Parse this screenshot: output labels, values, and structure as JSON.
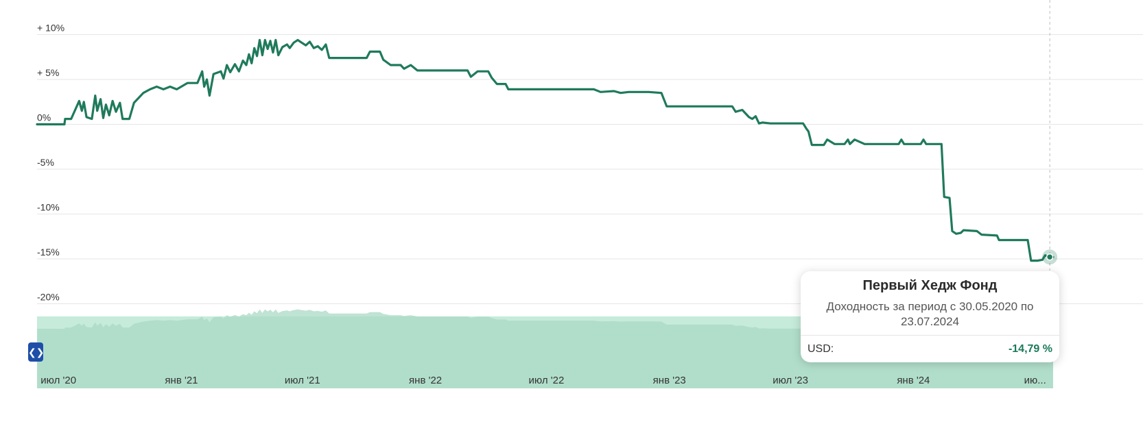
{
  "chart_data": {
    "type": "line",
    "ylim": [
      -22,
      12
    ],
    "y_ticks": [
      {
        "value": 10,
        "label": "+ 10%"
      },
      {
        "value": 5,
        "label": "+ 5%"
      },
      {
        "value": 0,
        "label": "0%"
      },
      {
        "value": -5,
        "label": "-5%"
      },
      {
        "value": -10,
        "label": "-10%"
      },
      {
        "value": -15,
        "label": "-15%"
      },
      {
        "value": -20,
        "label": "-20%"
      }
    ],
    "x_range": [
      "2020-05-30",
      "2024-07-28"
    ],
    "x_ticks": [
      {
        "date": "2020-07-01",
        "label": "июл '20"
      },
      {
        "date": "2021-01-01",
        "label": "янв '21"
      },
      {
        "date": "2021-07-01",
        "label": "июл '21"
      },
      {
        "date": "2022-01-01",
        "label": "янв '22"
      },
      {
        "date": "2022-07-01",
        "label": "июл '22"
      },
      {
        "date": "2023-01-01",
        "label": "янв '23"
      },
      {
        "date": "2023-07-01",
        "label": "июл '23"
      },
      {
        "date": "2024-01-01",
        "label": "янв '24"
      },
      {
        "date": "2024-07-01",
        "label": "ию..."
      }
    ],
    "grid": true,
    "line_color": "#1f7a5c",
    "navigator_color": "#c6ebdb",
    "series": [
      {
        "points": [
          [
            "2020-05-30",
            0.0
          ],
          [
            "2020-06-25",
            0.0
          ],
          [
            "2020-07-10",
            0.0
          ],
          [
            "2020-07-11",
            0.6
          ],
          [
            "2020-07-20",
            0.6
          ],
          [
            "2020-08-01",
            2.6
          ],
          [
            "2020-08-05",
            1.5
          ],
          [
            "2020-08-08",
            2.5
          ],
          [
            "2020-08-12",
            0.8
          ],
          [
            "2020-08-20",
            0.6
          ],
          [
            "2020-08-25",
            3.2
          ],
          [
            "2020-08-28",
            1.5
          ],
          [
            "2020-09-02",
            2.8
          ],
          [
            "2020-09-06",
            0.7
          ],
          [
            "2020-09-10",
            2.2
          ],
          [
            "2020-09-15",
            1.0
          ],
          [
            "2020-09-20",
            2.6
          ],
          [
            "2020-09-25",
            1.4
          ],
          [
            "2020-10-01",
            2.4
          ],
          [
            "2020-10-05",
            0.6
          ],
          [
            "2020-10-15",
            0.6
          ],
          [
            "2020-10-22",
            2.4
          ],
          [
            "2020-11-05",
            3.5
          ],
          [
            "2020-11-15",
            3.9
          ],
          [
            "2020-11-25",
            4.2
          ],
          [
            "2020-12-05",
            3.9
          ],
          [
            "2020-12-15",
            4.2
          ],
          [
            "2020-12-25",
            3.9
          ],
          [
            "2021-01-10",
            4.6
          ],
          [
            "2021-01-25",
            4.6
          ],
          [
            "2021-02-01",
            5.9
          ],
          [
            "2021-02-04",
            4.2
          ],
          [
            "2021-02-08",
            5.0
          ],
          [
            "2021-02-12",
            3.2
          ],
          [
            "2021-02-18",
            5.6
          ],
          [
            "2021-03-01",
            5.9
          ],
          [
            "2021-03-05",
            5.1
          ],
          [
            "2021-03-10",
            6.6
          ],
          [
            "2021-03-15",
            5.8
          ],
          [
            "2021-03-22",
            6.7
          ],
          [
            "2021-03-28",
            5.9
          ],
          [
            "2021-04-03",
            7.1
          ],
          [
            "2021-04-08",
            6.6
          ],
          [
            "2021-04-12",
            7.8
          ],
          [
            "2021-04-16",
            6.8
          ],
          [
            "2021-04-20",
            8.5
          ],
          [
            "2021-04-24",
            7.6
          ],
          [
            "2021-04-28",
            9.4
          ],
          [
            "2021-05-02",
            7.7
          ],
          [
            "2021-05-06",
            9.4
          ],
          [
            "2021-05-10",
            8.4
          ],
          [
            "2021-05-14",
            9.3
          ],
          [
            "2021-05-18",
            8.0
          ],
          [
            "2021-05-22",
            9.4
          ],
          [
            "2021-05-26",
            7.7
          ],
          [
            "2021-06-01",
            8.6
          ],
          [
            "2021-06-08",
            8.9
          ],
          [
            "2021-06-12",
            8.5
          ],
          [
            "2021-06-18",
            9.1
          ],
          [
            "2021-06-24",
            9.4
          ],
          [
            "2021-06-30",
            9.1
          ],
          [
            "2021-07-06",
            8.8
          ],
          [
            "2021-07-12",
            9.2
          ],
          [
            "2021-07-18",
            8.5
          ],
          [
            "2021-07-24",
            8.7
          ],
          [
            "2021-07-30",
            8.3
          ],
          [
            "2021-08-05",
            8.9
          ],
          [
            "2021-08-10",
            7.4
          ],
          [
            "2021-09-15",
            7.4
          ],
          [
            "2021-10-05",
            7.4
          ],
          [
            "2021-10-10",
            8.1
          ],
          [
            "2021-10-25",
            8.1
          ],
          [
            "2021-10-30",
            7.2
          ],
          [
            "2021-11-10",
            6.6
          ],
          [
            "2021-11-25",
            6.6
          ],
          [
            "2021-11-30",
            6.2
          ],
          [
            "2021-12-10",
            6.6
          ],
          [
            "2021-12-20",
            6.0
          ],
          [
            "2022-02-01",
            6.0
          ],
          [
            "2022-03-05",
            6.0
          ],
          [
            "2022-03-10",
            5.3
          ],
          [
            "2022-03-20",
            5.9
          ],
          [
            "2022-04-05",
            5.9
          ],
          [
            "2022-04-10",
            5.2
          ],
          [
            "2022-04-18",
            4.5
          ],
          [
            "2022-05-01",
            4.5
          ],
          [
            "2022-05-05",
            3.9
          ],
          [
            "2022-08-01",
            3.9
          ],
          [
            "2022-09-10",
            3.9
          ],
          [
            "2022-09-20",
            3.6
          ],
          [
            "2022-10-10",
            3.7
          ],
          [
            "2022-10-20",
            3.5
          ],
          [
            "2022-11-01",
            3.6
          ],
          [
            "2022-12-01",
            3.6
          ],
          [
            "2022-12-20",
            3.5
          ],
          [
            "2022-12-28",
            2.0
          ],
          [
            "2023-02-01",
            2.0
          ],
          [
            "2023-04-05",
            2.0
          ],
          [
            "2023-04-10",
            1.4
          ],
          [
            "2023-04-20",
            1.6
          ],
          [
            "2023-04-30",
            0.8
          ],
          [
            "2023-05-05",
            0.6
          ],
          [
            "2023-05-10",
            0.9
          ],
          [
            "2023-05-15",
            0.1
          ],
          [
            "2023-05-20",
            0.2
          ],
          [
            "2023-06-01",
            0.1
          ],
          [
            "2023-07-10",
            0.1
          ],
          [
            "2023-07-20",
            0.1
          ],
          [
            "2023-07-25",
            -0.5
          ],
          [
            "2023-07-28",
            -0.8
          ],
          [
            "2023-08-02",
            -2.3
          ],
          [
            "2023-08-20",
            -2.3
          ],
          [
            "2023-08-25",
            -1.7
          ],
          [
            "2023-09-05",
            -2.2
          ],
          [
            "2023-09-20",
            -2.2
          ],
          [
            "2023-09-25",
            -1.7
          ],
          [
            "2023-09-28",
            -2.2
          ],
          [
            "2023-10-05",
            -1.7
          ],
          [
            "2023-10-20",
            -2.2
          ],
          [
            "2023-12-10",
            -2.2
          ],
          [
            "2023-12-14",
            -1.7
          ],
          [
            "2023-12-18",
            -2.2
          ],
          [
            "2024-01-12",
            -2.2
          ],
          [
            "2024-01-16",
            -1.7
          ],
          [
            "2024-01-20",
            -2.2
          ],
          [
            "2024-02-12",
            -2.2
          ],
          [
            "2024-02-16",
            -8.1
          ],
          [
            "2024-02-24",
            -8.2
          ],
          [
            "2024-02-28",
            -11.9
          ],
          [
            "2024-03-05",
            -12.2
          ],
          [
            "2024-03-12",
            -12.1
          ],
          [
            "2024-03-16",
            -11.8
          ],
          [
            "2024-04-05",
            -11.9
          ],
          [
            "2024-04-12",
            -12.3
          ],
          [
            "2024-05-05",
            -12.4
          ],
          [
            "2024-05-08",
            -12.9
          ],
          [
            "2024-06-20",
            -12.9
          ],
          [
            "2024-06-25",
            -15.2
          ],
          [
            "2024-07-05",
            -15.2
          ],
          [
            "2024-07-12",
            -15.1
          ],
          [
            "2024-07-16",
            -14.6
          ],
          [
            "2024-07-23",
            -14.79
          ],
          [
            "2024-07-28",
            -14.8
          ]
        ]
      }
    ],
    "highlight": {
      "date": "2024-07-23",
      "value": -14.79
    }
  },
  "tooltip": {
    "title": "Первый Хедж Фонд",
    "subtitle": "Доходность за период с 30.05.2020 по 23.07.2024",
    "currency": "USD:",
    "value": "-14,79 %"
  },
  "navigator": {
    "handle_icon": "expand-horizontal-icon"
  }
}
